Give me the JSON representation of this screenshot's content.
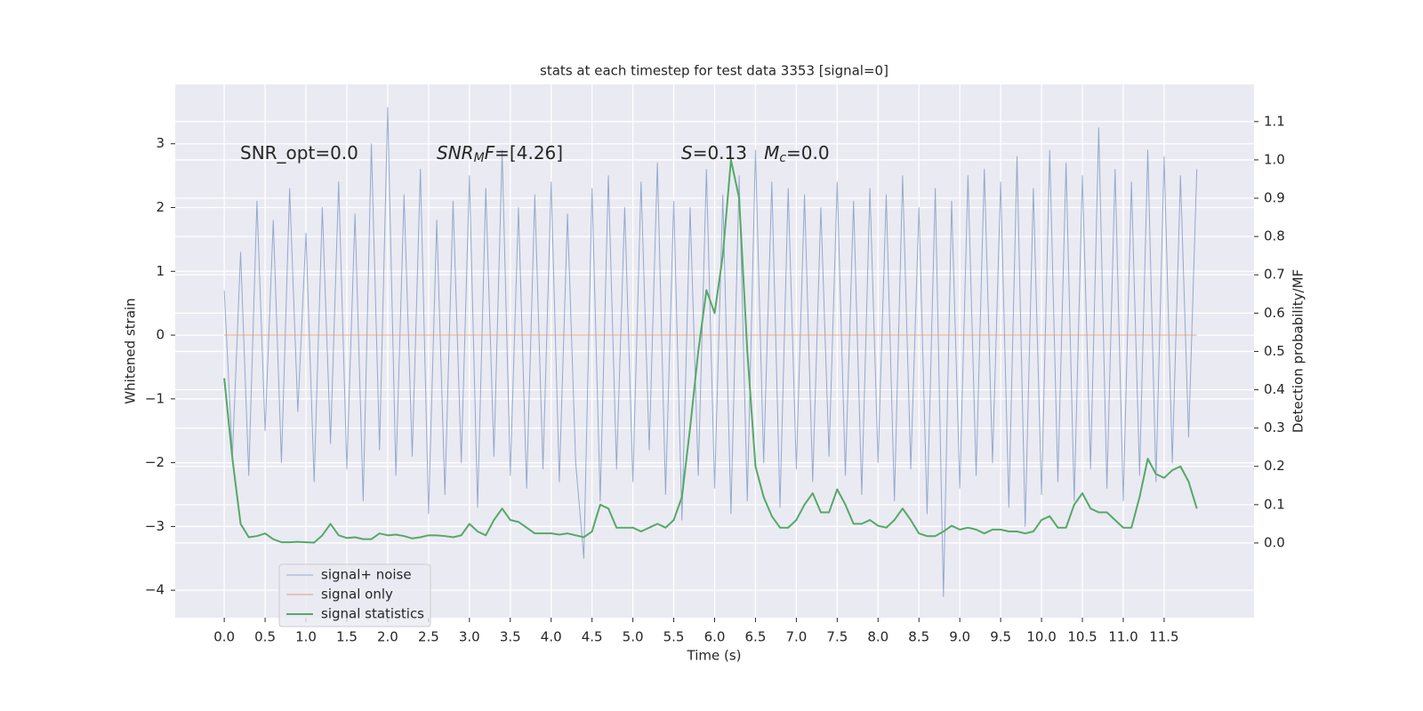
{
  "chart_data": {
    "type": "line",
    "title": "stats at each timestep for test data 3353 [signal=0]",
    "xlabel": "Time (s)",
    "ylabel": "Whitened strain",
    "y2label": "Detection probability/MF",
    "annotations": [
      {
        "parts": [
          {
            "text": "SNR_opt=0.0",
            "style": "normal"
          }
        ]
      },
      {
        "parts": [
          {
            "text": "SNR",
            "style": "italic"
          },
          {
            "text": "M",
            "style": "italic-sub"
          },
          {
            "text": "F",
            "style": "italic"
          },
          {
            "text": "=[4.26]",
            "style": "normal"
          }
        ]
      },
      {
        "parts": [
          {
            "text": "S",
            "style": "italic"
          },
          {
            "text": "=0.13   ",
            "style": "normal"
          },
          {
            "text": "M",
            "style": "italic"
          },
          {
            "text": "c",
            "style": "italic-sub"
          },
          {
            "text": "=0.0",
            "style": "normal"
          }
        ]
      }
    ],
    "x": [
      0,
      0.1,
      0.2,
      0.3,
      0.4,
      0.5,
      0.6,
      0.7,
      0.8,
      0.9,
      1,
      1.1,
      1.2,
      1.3,
      1.4,
      1.5,
      1.6,
      1.7,
      1.8,
      1.9,
      2,
      2.1,
      2.2,
      2.3,
      2.4,
      2.5,
      2.6,
      2.7,
      2.8,
      2.9,
      3,
      3.1,
      3.2,
      3.3,
      3.4,
      3.5,
      3.6,
      3.7,
      3.8,
      3.9,
      4,
      4.1,
      4.2,
      4.3,
      4.4,
      4.5,
      4.6,
      4.7,
      4.8,
      4.9,
      5,
      5.1,
      5.2,
      5.3,
      5.4,
      5.5,
      5.6,
      5.7,
      5.8,
      5.9,
      6,
      6.1,
      6.2,
      6.3,
      6.4,
      6.5,
      6.6,
      6.7,
      6.8,
      6.9,
      7,
      7.1,
      7.2,
      7.3,
      7.4,
      7.5,
      7.6,
      7.7,
      7.8,
      7.9,
      8,
      8.1,
      8.2,
      8.3,
      8.4,
      8.5,
      8.6,
      8.7,
      8.8,
      8.9,
      9,
      9.1,
      9.2,
      9.3,
      9.4,
      9.5,
      9.6,
      9.7,
      9.8,
      9.9,
      10,
      10.1,
      10.2,
      10.3,
      10.4,
      10.5,
      10.6,
      10.7,
      10.8,
      10.9,
      11,
      11.1,
      11.2,
      11.3,
      11.4,
      11.5,
      11.6,
      11.7,
      11.8,
      11.9
    ],
    "series": [
      {
        "name": "signal+ noise",
        "color": "#4c72b0",
        "axis": "y",
        "values": [
          0.7,
          -1.9,
          1.3,
          -2.2,
          2.1,
          -1.5,
          1.8,
          -2.0,
          2.3,
          -1.2,
          1.6,
          -2.3,
          2.0,
          -1.7,
          2.4,
          -2.1,
          1.9,
          -2.6,
          3.0,
          -1.8,
          3.57,
          -2.2,
          2.2,
          -1.9,
          2.6,
          -2.8,
          1.8,
          -2.5,
          2.1,
          -2.0,
          2.5,
          -2.7,
          2.3,
          -1.9,
          2.9,
          -2.2,
          2.0,
          -2.4,
          2.2,
          -2.1,
          2.4,
          -2.3,
          1.9,
          -2.0,
          -3.5,
          2.3,
          -2.6,
          2.5,
          -2.1,
          2.0,
          -2.3,
          2.4,
          -1.8,
          2.7,
          -2.5,
          2.1,
          -2.9,
          2.0,
          -2.2,
          2.6,
          -2.4,
          2.2,
          -2.8,
          2.5,
          -2.6,
          2.9,
          -2.0,
          2.4,
          -2.7,
          2.3,
          -2.1,
          2.2,
          -2.3,
          2.0,
          -1.9,
          2.4,
          -2.2,
          2.1,
          -2.5,
          2.3,
          -2.0,
          2.2,
          -2.6,
          2.5,
          -2.1,
          2.0,
          -2.8,
          2.3,
          -4.1,
          2.1,
          -2.4,
          2.5,
          -2.2,
          2.6,
          -2.0,
          2.4,
          -2.7,
          2.8,
          -3.0,
          2.3,
          -2.5,
          2.9,
          -2.3,
          2.7,
          -2.6,
          2.5,
          -2.1,
          3.25,
          -2.4,
          2.6,
          -2.6,
          2.4,
          -2.2,
          2.9,
          -2.3,
          2.8,
          -2.0,
          2.5,
          -1.6,
          2.6
        ]
      },
      {
        "name": "signal only",
        "color": "#dd8452",
        "axis": "y",
        "values": [
          0,
          0,
          0,
          0,
          0,
          0,
          0,
          0,
          0,
          0,
          0,
          0,
          0,
          0,
          0,
          0,
          0,
          0,
          0,
          0,
          0,
          0,
          0,
          0,
          0,
          0,
          0,
          0,
          0,
          0,
          0,
          0,
          0,
          0,
          0,
          0,
          0,
          0,
          0,
          0,
          0,
          0,
          0,
          0,
          0,
          0,
          0,
          0,
          0,
          0,
          0,
          0,
          0,
          0,
          0,
          0,
          0,
          0,
          0,
          0,
          0,
          0,
          0,
          0,
          0,
          0,
          0,
          0,
          0,
          0,
          0,
          0,
          0,
          0,
          0,
          0,
          0,
          0,
          0,
          0,
          0,
          0,
          0,
          0,
          0,
          0,
          0,
          0,
          0,
          0,
          0,
          0,
          0,
          0,
          0,
          0,
          0,
          0,
          0,
          0,
          0,
          0,
          0,
          0,
          0,
          0,
          0,
          0,
          0,
          0,
          0,
          0,
          0,
          0,
          0,
          0,
          0,
          0,
          0,
          0
        ]
      },
      {
        "name": "signal statistics",
        "color": "#55a868",
        "axis": "y2",
        "values": [
          0.43,
          0.22,
          0.05,
          0.015,
          0.018,
          0.025,
          0.01,
          0.002,
          0.002,
          0.003,
          0.002,
          0.001,
          0.02,
          0.05,
          0.02,
          0.013,
          0.015,
          0.01,
          0.01,
          0.025,
          0.02,
          0.022,
          0.018,
          0.012,
          0.015,
          0.02,
          0.02,
          0.018,
          0.015,
          0.02,
          0.05,
          0.03,
          0.02,
          0.06,
          0.09,
          0.06,
          0.055,
          0.04,
          0.025,
          0.025,
          0.025,
          0.022,
          0.025,
          0.02,
          0.015,
          0.03,
          0.1,
          0.09,
          0.04,
          0.04,
          0.04,
          0.03,
          0.04,
          0.05,
          0.04,
          0.06,
          0.12,
          0.3,
          0.5,
          0.66,
          0.6,
          0.75,
          1.0,
          0.9,
          0.5,
          0.2,
          0.12,
          0.07,
          0.04,
          0.04,
          0.06,
          0.1,
          0.13,
          0.08,
          0.08,
          0.14,
          0.1,
          0.05,
          0.05,
          0.06,
          0.045,
          0.04,
          0.06,
          0.09,
          0.06,
          0.025,
          0.018,
          0.018,
          0.03,
          0.045,
          0.035,
          0.04,
          0.035,
          0.025,
          0.035,
          0.035,
          0.03,
          0.03,
          0.025,
          0.03,
          0.06,
          0.07,
          0.04,
          0.04,
          0.1,
          0.13,
          0.09,
          0.08,
          0.08,
          0.06,
          0.04,
          0.04,
          0.12,
          0.22,
          0.18,
          0.17,
          0.19,
          0.2,
          0.16,
          0.09
        ]
      }
    ],
    "xlim": [
      -0.6,
      12.6
    ],
    "ylim": [
      -4.43,
      3.93
    ],
    "y2lim": [
      -0.195,
      1.197
    ],
    "xticks": [
      {
        "value": 0,
        "label": "0.0"
      },
      0.5,
      {
        "value": 1,
        "label": "1.0"
      },
      1.5,
      {
        "value": 2,
        "label": "2.0"
      },
      2.5,
      {
        "value": 3,
        "label": "3.0"
      },
      3.5,
      {
        "value": 4,
        "label": "4.0"
      },
      4.5,
      {
        "value": 5,
        "label": "5.0"
      },
      5.5,
      {
        "value": 6,
        "label": "6.0"
      },
      6.5,
      {
        "value": 7,
        "label": "7.0"
      },
      7.5,
      {
        "value": 8,
        "label": "8.0"
      },
      8.5,
      {
        "value": 9,
        "label": "9.0"
      },
      9.5,
      {
        "value": 10,
        "label": "10.0"
      },
      10.5,
      {
        "value": 11,
        "label": "11.0"
      },
      11.5
    ],
    "yticks": [
      {
        "value": -4,
        "label": "−4"
      },
      {
        "value": -3,
        "label": "−3"
      },
      {
        "value": -2,
        "label": "−2"
      },
      {
        "value": -1,
        "label": "−1"
      },
      0,
      1,
      2,
      3
    ],
    "y2ticks": [
      {
        "value": 0,
        "label": "0.0"
      },
      0.1,
      0.2,
      0.3,
      0.4,
      0.5,
      0.6,
      0.7,
      0.8,
      0.9,
      {
        "value": 1,
        "label": "1.0"
      },
      1.1
    ],
    "grid": true,
    "legend": "lower left"
  }
}
